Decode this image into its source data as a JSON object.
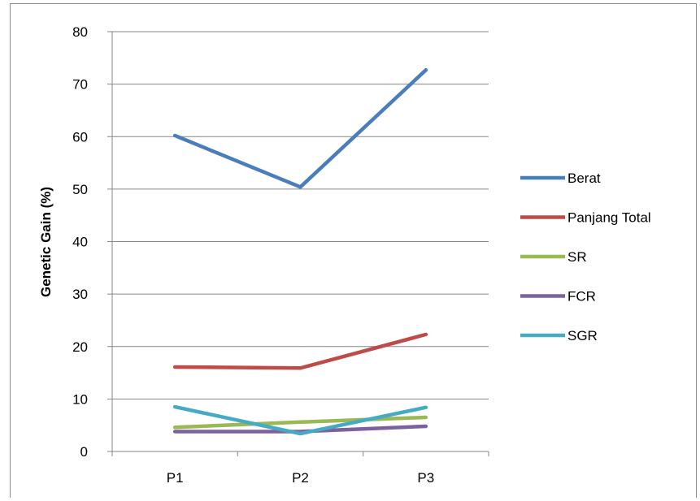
{
  "chart_data": {
    "type": "line",
    "categories": [
      "P1",
      "P2",
      "P3"
    ],
    "ylabel": "Genetic Gain (%)",
    "xlabel": "",
    "ylim": [
      0,
      80
    ],
    "yticks": [
      0,
      10,
      20,
      30,
      40,
      50,
      60,
      70,
      80
    ],
    "grid": true,
    "legend": "right",
    "series": [
      {
        "name": "Berat",
        "values": [
          60.2,
          50.4,
          72.7
        ],
        "color": "#4a7ebb"
      },
      {
        "name": "Panjang Total",
        "values": [
          16.1,
          15.9,
          22.3
        ],
        "color": "#be4b48"
      },
      {
        "name": "SR",
        "values": [
          4.6,
          5.6,
          6.5
        ],
        "color": "#98b954"
      },
      {
        "name": "FCR",
        "values": [
          3.8,
          3.8,
          4.8
        ],
        "color": "#7d60a0"
      },
      {
        "name": "SGR",
        "values": [
          8.5,
          3.4,
          8.4
        ],
        "color": "#46aac5"
      }
    ]
  }
}
